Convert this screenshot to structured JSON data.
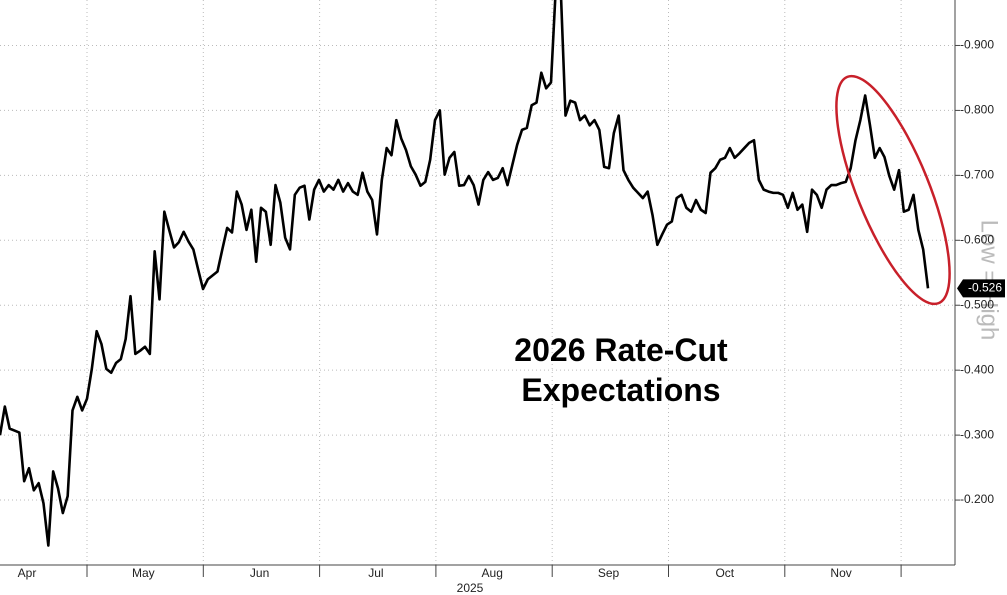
{
  "chart_data": {
    "type": "line",
    "title": "2026 Rate-Cut Expectations",
    "ylabel": "Low = High",
    "xlabel": "2025",
    "xtick_labels": [
      "Apr",
      "May",
      "Jun",
      "Jul",
      "Aug",
      "Sep",
      "Oct",
      "Nov"
    ],
    "ylim": [
      -0.1,
      -0.97
    ],
    "yticks": [
      {
        "value": -0.9,
        "label": "-0.900"
      },
      {
        "value": -0.8,
        "label": "-0.800"
      },
      {
        "value": -0.7,
        "label": "-0.700"
      },
      {
        "value": -0.6,
        "label": "-0.600"
      },
      {
        "value": -0.5,
        "label": "-0.500"
      },
      {
        "value": -0.4,
        "label": "-0.400"
      },
      {
        "value": -0.3,
        "label": "-0.300"
      },
      {
        "value": -0.2,
        "label": "-0.200"
      }
    ],
    "grid": true,
    "series": [
      {
        "color": "#000000",
        "values": [
          -0.3,
          -0.344,
          -0.31,
          -0.307,
          -0.304,
          -0.229,
          -0.249,
          -0.215,
          -0.226,
          -0.195,
          -0.13,
          -0.244,
          -0.218,
          -0.18,
          -0.206,
          -0.338,
          -0.359,
          -0.338,
          -0.356,
          -0.402,
          -0.46,
          -0.44,
          -0.402,
          -0.396,
          -0.411,
          -0.417,
          -0.448,
          -0.514,
          -0.425,
          -0.43,
          -0.436,
          -0.425,
          -0.583,
          -0.509,
          -0.644,
          -0.616,
          -0.589,
          -0.597,
          -0.613,
          -0.598,
          -0.586,
          -0.555,
          -0.525,
          -0.54,
          -0.546,
          -0.552,
          -0.586,
          -0.619,
          -0.612,
          -0.675,
          -0.655,
          -0.616,
          -0.647,
          -0.567,
          -0.65,
          -0.644,
          -0.593,
          -0.685,
          -0.658,
          -0.604,
          -0.586,
          -0.67,
          -0.681,
          -0.684,
          -0.632,
          -0.678,
          -0.693,
          -0.675,
          -0.685,
          -0.678,
          -0.693,
          -0.675,
          -0.688,
          -0.675,
          -0.67,
          -0.704,
          -0.675,
          -0.662,
          -0.609,
          -0.693,
          -0.742,
          -0.731,
          -0.785,
          -0.757,
          -0.739,
          -0.714,
          -0.701,
          -0.684,
          -0.69,
          -0.724,
          -0.785,
          -0.8,
          -0.701,
          -0.727,
          -0.736,
          -0.684,
          -0.685,
          -0.699,
          -0.685,
          -0.655,
          -0.693,
          -0.705,
          -0.693,
          -0.696,
          -0.711,
          -0.685,
          -0.716,
          -0.747,
          -0.77,
          -0.773,
          -0.808,
          -0.812,
          -0.858,
          -0.834,
          -0.843,
          -0.99,
          -0.99,
          -0.792,
          -0.815,
          -0.812,
          -0.785,
          -0.792,
          -0.777,
          -0.785,
          -0.77,
          -0.713,
          -0.711,
          -0.765,
          -0.792,
          -0.708,
          -0.693,
          -0.681,
          -0.673,
          -0.665,
          -0.675,
          -0.639,
          -0.593,
          -0.609,
          -0.624,
          -0.629,
          -0.665,
          -0.67,
          -0.65,
          -0.644,
          -0.662,
          -0.647,
          -0.642,
          -0.704,
          -0.711,
          -0.724,
          -0.727,
          -0.742,
          -0.727,
          -0.734,
          -0.742,
          -0.75,
          -0.754,
          -0.693,
          -0.678,
          -0.675,
          -0.673,
          -0.673,
          -0.67,
          -0.65,
          -0.673,
          -0.647,
          -0.655,
          -0.613,
          -0.678,
          -0.67,
          -0.65,
          -0.678,
          -0.685,
          -0.685,
          -0.688,
          -0.69,
          -0.711,
          -0.754,
          -0.785,
          -0.823,
          -0.777,
          -0.727,
          -0.742,
          -0.728,
          -0.699,
          -0.678,
          -0.708,
          -0.644,
          -0.647,
          -0.67,
          -0.616,
          -0.586,
          -0.526
        ],
        "value_labels": [
          null,
          null,
          null,
          null,
          null,
          null,
          null,
          null,
          null,
          null,
          null,
          null,
          null,
          null,
          null,
          null,
          null,
          null,
          null,
          null,
          null,
          null,
          null,
          null,
          null,
          null,
          null,
          null,
          null,
          null,
          null,
          null,
          null,
          null,
          null,
          null,
          null,
          null,
          null,
          null,
          null,
          null,
          null,
          null,
          null,
          null,
          null,
          null,
          null,
          null,
          null,
          null,
          null,
          null,
          null,
          null,
          null,
          null,
          null,
          null,
          null,
          null,
          null,
          null,
          null,
          null,
          null,
          null,
          null,
          null,
          null,
          null,
          null,
          null,
          null,
          null,
          null,
          null,
          null,
          null,
          null,
          null,
          null,
          null,
          null,
          null,
          null,
          null,
          null,
          null,
          null,
          null,
          null,
          null,
          null,
          null,
          null,
          null,
          null,
          null,
          null,
          null,
          null,
          null,
          null,
          null,
          null,
          null,
          null,
          null,
          null,
          null,
          null,
          null,
          null,
          null,
          null,
          null,
          null,
          null,
          null,
          null,
          null,
          null,
          null,
          null,
          null,
          null,
          null,
          null,
          null,
          null,
          null,
          null,
          null,
          null,
          null,
          null,
          null,
          null,
          null,
          null,
          null,
          null,
          null,
          null,
          null,
          null,
          null,
          null,
          null,
          null,
          null,
          null,
          null,
          null,
          null,
          null,
          null,
          null,
          null,
          null,
          null,
          null,
          null,
          null,
          null,
          null,
          null,
          null,
          null,
          null,
          null,
          null,
          null,
          null,
          null,
          null,
          null,
          null,
          null,
          null,
          null,
          null,
          null,
          null,
          null,
          null,
          null,
          null,
          null,
          null,
          "-0.526"
        ]
      }
    ]
  }
}
